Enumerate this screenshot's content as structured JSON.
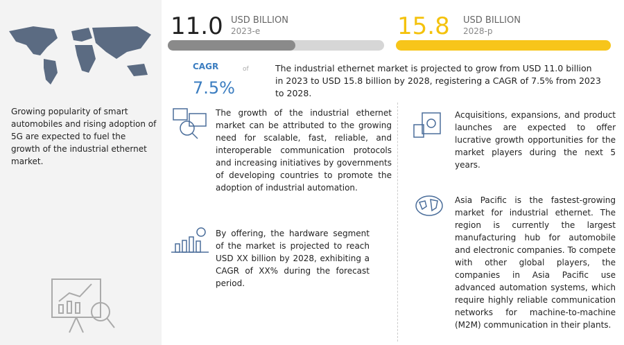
{
  "header": {
    "start": {
      "value": "11.0",
      "unit": "USD BILLION",
      "year": "2023-e"
    },
    "end": {
      "value": "15.8",
      "unit": "USD BILLION",
      "year": "2028-p"
    },
    "cagr": {
      "label": "CAGR",
      "connector": "of",
      "value": "7.5%"
    },
    "summary": "The industrial ethernet market is projected to grow from USD 11.0 billion in 2023 to USD 15.8 billion by 2028, registering a CAGR of 7.5% from 2023 to 2028."
  },
  "sidebar": {
    "text": "Growing popularity of smart automobiles and rising adoption of 5G are expected to fuel the growth of the industrial ethernet market."
  },
  "insights": [
    {
      "text": "The growth of the industrial ethernet market can be attributed to the growing need for scalable, fast, reliable, and interoperable communication protocols and increasing initiatives by governments of developing countries to promote the adoption of industrial automation."
    },
    {
      "text": "By offering, the hardware segment of the market is projected to reach USD XX billion by 2028, exhibiting a CAGR of XX% during the forecast period."
    },
    {
      "text": "Acquisitions, expansions, and product launches are expected to offer lucrative growth opportunities for the market players during the next 5 years."
    },
    {
      "text": "Asia Pacific is the fastest-growing market for industrial ethernet. The region is currently the largest manufacturing hub for automobile and electronic companies. To compete with other global players, the companies in Asia Pacific use advanced automation systems, which require highly reliable communication networks for machine-to-machine (M2M) communication in their plants."
    }
  ]
}
